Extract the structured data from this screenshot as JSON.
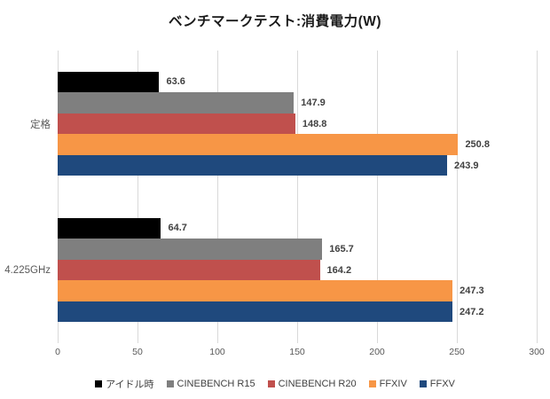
{
  "chart_data": {
    "type": "bar",
    "orientation": "horizontal",
    "title": "ベンチマークテスト:消費電力(W)",
    "categories": [
      "定格",
      "4.225GHz"
    ],
    "series": [
      {
        "name": "アイドル時",
        "color": "#000000",
        "values": [
          63.6,
          64.7
        ]
      },
      {
        "name": "CINEBENCH R15",
        "color": "#7F7F7F",
        "values": [
          147.9,
          165.7
        ]
      },
      {
        "name": "CINEBENCH R20",
        "color": "#C0504D",
        "values": [
          148.8,
          164.2
        ]
      },
      {
        "name": "FFXIV",
        "color": "#F79646",
        "values": [
          250.8,
          247.3
        ]
      },
      {
        "name": "FFXV",
        "color": "#1F497D",
        "values": [
          243.9,
          247.2
        ]
      }
    ],
    "xlim": [
      0,
      300
    ],
    "x_ticks": [
      "0",
      "50",
      "100",
      "150",
      "200",
      "250",
      "300"
    ],
    "grid": true,
    "legend_position": "bottom",
    "value_labels_shown": true
  },
  "style": {
    "gridline_color": "#d9d9d9",
    "axis_text_color": "#595959",
    "value_text_color": "#404040",
    "background": "#ffffff"
  }
}
